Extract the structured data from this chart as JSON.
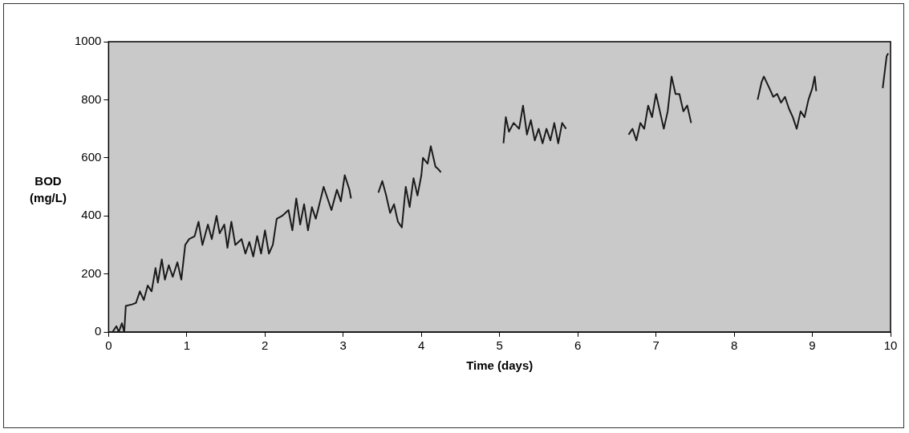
{
  "chart_data": {
    "type": "line",
    "xlabel": "Time (days)",
    "ylabel": "BOD (mg/L)",
    "xlim": [
      0,
      10
    ],
    "xticks": [
      0,
      1,
      2,
      3,
      4,
      5,
      6,
      7,
      8,
      9,
      10
    ],
    "ylim": [
      0,
      1000
    ],
    "yticks": [
      0,
      200,
      400,
      600,
      800,
      1000
    ],
    "grid": false,
    "legend": false,
    "marker": "none",
    "line_style": "solid",
    "series": [
      {
        "color": "#1a1a1a",
        "x": [
          0.05,
          0.1,
          0.13,
          0.17,
          0.2,
          0.22,
          0.3,
          0.35,
          0.4,
          0.45,
          0.5,
          0.55,
          0.6,
          0.63,
          0.68,
          0.72,
          0.77,
          0.82,
          0.88,
          0.93,
          0.98,
          1.03,
          1.1,
          1.15,
          1.2,
          1.27,
          1.32,
          1.38,
          1.42,
          1.48,
          1.52,
          1.57,
          1.62,
          1.7,
          1.75,
          1.8,
          1.85,
          1.9,
          1.95,
          2.0,
          2.05,
          2.1,
          2.15,
          2.22,
          2.3,
          2.35,
          2.4,
          2.45,
          2.5,
          2.55,
          2.6,
          2.65,
          2.75,
          2.8,
          2.85,
          2.92,
          2.97,
          3.02,
          3.08,
          3.1,
          3.3,
          3.45,
          3.5,
          3.55,
          3.6,
          3.65,
          3.7,
          3.75,
          3.8,
          3.85,
          3.9,
          3.95,
          4.0,
          4.02,
          4.08,
          4.12,
          4.18,
          4.22,
          4.25,
          4.6,
          5.05,
          5.08,
          5.12,
          5.18,
          5.25,
          5.3,
          5.35,
          5.4,
          5.45,
          5.5,
          5.55,
          5.6,
          5.65,
          5.7,
          5.75,
          5.8,
          5.85,
          6.2,
          6.65,
          6.7,
          6.75,
          6.8,
          6.85,
          6.9,
          6.95,
          7.0,
          7.05,
          7.1,
          7.15,
          7.2,
          7.25,
          7.3,
          7.35,
          7.4,
          7.45,
          7.9,
          8.3,
          8.35,
          8.38,
          8.45,
          8.5,
          8.55,
          8.6,
          8.65,
          8.7,
          8.75,
          8.8,
          8.85,
          8.9,
          8.95,
          9.0,
          9.03,
          9.05,
          9.5,
          9.9,
          9.95,
          9.97
        ],
        "values": [
          0,
          20,
          0,
          30,
          0,
          90,
          95,
          100,
          140,
          110,
          160,
          140,
          220,
          170,
          250,
          180,
          230,
          190,
          240,
          180,
          300,
          320,
          330,
          380,
          300,
          370,
          320,
          400,
          340,
          370,
          290,
          380,
          300,
          320,
          270,
          310,
          260,
          330,
          270,
          350,
          270,
          300,
          390,
          400,
          420,
          350,
          460,
          370,
          440,
          350,
          430,
          390,
          500,
          460,
          420,
          490,
          450,
          540,
          490,
          460,
          null,
          480,
          520,
          470,
          410,
          440,
          380,
          360,
          500,
          430,
          530,
          470,
          540,
          600,
          580,
          640,
          570,
          560,
          550,
          null,
          650,
          740,
          690,
          720,
          700,
          780,
          680,
          730,
          660,
          700,
          650,
          700,
          660,
          720,
          650,
          720,
          700,
          null,
          680,
          700,
          660,
          720,
          700,
          780,
          740,
          820,
          760,
          700,
          760,
          880,
          820,
          820,
          760,
          780,
          720,
          null,
          800,
          860,
          880,
          840,
          810,
          820,
          790,
          810,
          770,
          740,
          700,
          760,
          740,
          800,
          840,
          880,
          830,
          null,
          840,
          950,
          960
        ]
      }
    ]
  }
}
